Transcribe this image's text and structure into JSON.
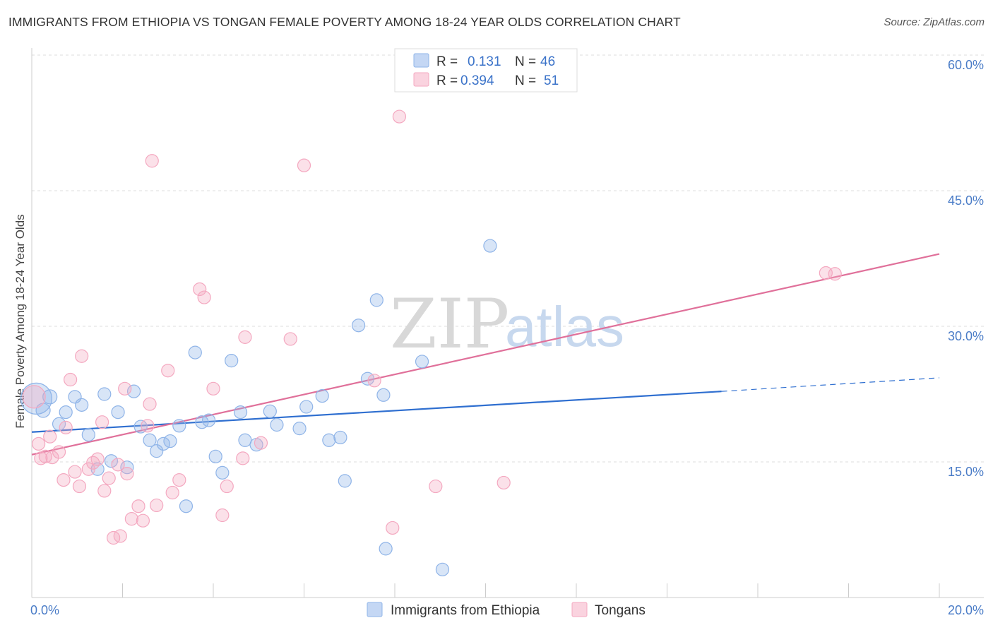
{
  "header": {
    "title": "IMMIGRANTS FROM ETHIOPIA VS TONGAN FEMALE POVERTY AMONG 18-24 YEAR OLDS CORRELATION CHART",
    "source": "Source: ZipAtlas.com"
  },
  "watermark": {
    "zip": "ZIP",
    "atlas": "atlas"
  },
  "legend": {
    "r_label": "R =",
    "n_label": "N =",
    "rows": [
      {
        "r": "0.131",
        "n": "46",
        "color": "#8fb4e8"
      },
      {
        "r": "0.394",
        "n": "51",
        "color": "#f4a8c0"
      }
    ]
  },
  "chart_data": {
    "type": "scatter",
    "title": "IMMIGRANTS FROM ETHIOPIA VS TONGAN FEMALE POVERTY AMONG 18-24 YEAR OLDS CORRELATION CHART",
    "ylabel": "Female Poverty Among 18-24 Year Olds",
    "xlabel": "",
    "xlim": [
      0,
      20
    ],
    "ylim": [
      0,
      60
    ],
    "x_ticks": [
      "0.0%",
      "20.0%"
    ],
    "y_ticks": [
      {
        "value": 15,
        "label": "15.0%"
      },
      {
        "value": 30,
        "label": "30.0%"
      },
      {
        "value": 45,
        "label": "45.0%"
      },
      {
        "value": 60,
        "label": "60.0%"
      }
    ],
    "grid": true,
    "legend_position": "top-center",
    "series": [
      {
        "name": "Immigrants from Ethiopia",
        "color": "#8fb4e8",
        "line_color": "#2f6fd0",
        "trend": {
          "x0": 0,
          "y0": 18.3,
          "x1": 15.2,
          "y1": 22.8,
          "dash_to_x": 20,
          "dash_to_y": 24.3
        },
        "points": [
          [
            0.1,
            22.0,
            22
          ],
          [
            0.25,
            20.7,
            10
          ],
          [
            0.4,
            22.2,
            10
          ],
          [
            0.6,
            19.2,
            9
          ],
          [
            0.75,
            20.5,
            9
          ],
          [
            0.95,
            22.2,
            9
          ],
          [
            1.1,
            21.3,
            9
          ],
          [
            1.25,
            18.0,
            9
          ],
          [
            1.45,
            14.2,
            9
          ],
          [
            1.6,
            22.5,
            9
          ],
          [
            1.75,
            15.1,
            9
          ],
          [
            1.9,
            20.5,
            9
          ],
          [
            2.1,
            14.4,
            9
          ],
          [
            2.25,
            22.8,
            9
          ],
          [
            2.4,
            18.9,
            9
          ],
          [
            2.6,
            17.4,
            9
          ],
          [
            2.75,
            16.2,
            9
          ],
          [
            2.9,
            17.0,
            9
          ],
          [
            3.05,
            17.3,
            9
          ],
          [
            3.25,
            19.0,
            9
          ],
          [
            3.4,
            10.1,
            9
          ],
          [
            3.6,
            27.1,
            9
          ],
          [
            3.75,
            19.4,
            9
          ],
          [
            3.9,
            19.6,
            9
          ],
          [
            4.05,
            15.6,
            9
          ],
          [
            4.2,
            13.8,
            9
          ],
          [
            4.4,
            26.2,
            9
          ],
          [
            4.6,
            20.5,
            9
          ],
          [
            4.7,
            17.4,
            9
          ],
          [
            4.95,
            16.9,
            9
          ],
          [
            5.25,
            20.6,
            9
          ],
          [
            5.4,
            19.1,
            9
          ],
          [
            5.9,
            18.7,
            9
          ],
          [
            6.05,
            21.1,
            9
          ],
          [
            6.4,
            22.3,
            9
          ],
          [
            6.55,
            17.4,
            9
          ],
          [
            6.8,
            17.7,
            9
          ],
          [
            6.9,
            12.9,
            9
          ],
          [
            7.2,
            30.1,
            9
          ],
          [
            7.4,
            24.2,
            9
          ],
          [
            7.6,
            32.9,
            9
          ],
          [
            7.75,
            22.4,
            9
          ],
          [
            7.8,
            5.4,
            9
          ],
          [
            8.6,
            26.1,
            9
          ],
          [
            9.05,
            3.1,
            9
          ],
          [
            10.1,
            38.9,
            9
          ]
        ]
      },
      {
        "name": "Tongans",
        "color": "#f4a8c0",
        "line_color": "#e0709a",
        "trend": {
          "x0": 0,
          "y0": 15.8,
          "x1": 20,
          "y1": 38.0
        },
        "points": [
          [
            0.05,
            22.2,
            16
          ],
          [
            0.15,
            17.0,
            9
          ],
          [
            0.3,
            15.6,
            9
          ],
          [
            0.45,
            15.5,
            9
          ],
          [
            0.4,
            17.8,
            9
          ],
          [
            0.6,
            16.1,
            9
          ],
          [
            0.7,
            13.0,
            9
          ],
          [
            0.75,
            18.8,
            9
          ],
          [
            0.85,
            24.1,
            9
          ],
          [
            0.95,
            13.9,
            9
          ],
          [
            1.05,
            12.3,
            9
          ],
          [
            1.1,
            26.7,
            9
          ],
          [
            1.25,
            14.2,
            9
          ],
          [
            1.35,
            14.9,
            9
          ],
          [
            1.45,
            15.3,
            9
          ],
          [
            1.55,
            19.4,
            9
          ],
          [
            1.6,
            11.8,
            9
          ],
          [
            1.7,
            13.2,
            9
          ],
          [
            1.8,
            6.6,
            9
          ],
          [
            1.9,
            14.7,
            9
          ],
          [
            1.95,
            6.8,
            9
          ],
          [
            2.05,
            23.1,
            9
          ],
          [
            2.1,
            13.7,
            9
          ],
          [
            2.2,
            8.7,
            9
          ],
          [
            2.35,
            10.1,
            9
          ],
          [
            2.45,
            8.5,
            9
          ],
          [
            2.55,
            19.0,
            9
          ],
          [
            2.6,
            21.4,
            9
          ],
          [
            2.65,
            48.3,
            9
          ],
          [
            2.75,
            10.2,
            9
          ],
          [
            3.0,
            25.1,
            9
          ],
          [
            3.1,
            11.6,
            9
          ],
          [
            3.25,
            13.0,
            9
          ],
          [
            3.7,
            34.1,
            9
          ],
          [
            3.8,
            33.2,
            9
          ],
          [
            4.0,
            23.1,
            9
          ],
          [
            4.2,
            9.1,
            9
          ],
          [
            4.3,
            12.3,
            9
          ],
          [
            4.65,
            15.4,
            9
          ],
          [
            4.7,
            28.8,
            9
          ],
          [
            5.05,
            17.1,
            9
          ],
          [
            5.7,
            28.6,
            9
          ],
          [
            6.0,
            47.8,
            9
          ],
          [
            7.55,
            24.0,
            9
          ],
          [
            7.95,
            7.7,
            9
          ],
          [
            8.1,
            53.2,
            9
          ],
          [
            8.9,
            12.3,
            9
          ],
          [
            10.4,
            12.7,
            9
          ],
          [
            17.5,
            35.9,
            9
          ],
          [
            17.7,
            35.8,
            9
          ],
          [
            0.2,
            15.4,
            9
          ]
        ]
      }
    ]
  }
}
